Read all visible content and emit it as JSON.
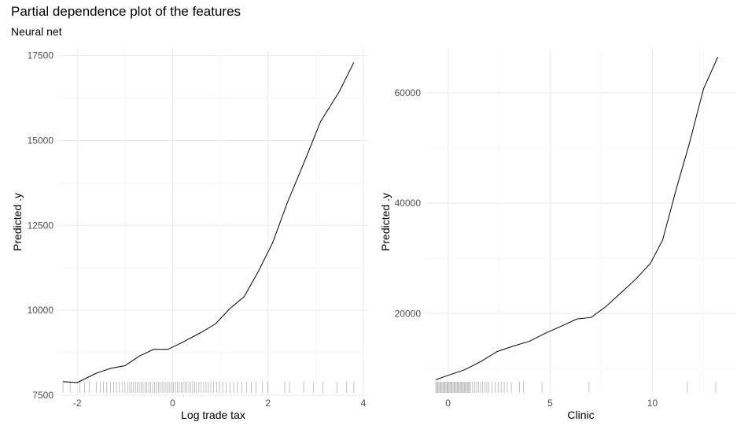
{
  "title": "Partial dependence plot of the features",
  "subtitle": "Neural net",
  "chart_data": [
    {
      "type": "line",
      "xlabel": "Log trade tax",
      "ylabel": "Predicted .y",
      "xlim": [
        -2.4,
        4.1
      ],
      "ylim": [
        7500,
        17700
      ],
      "xticks": [
        -2,
        0,
        2,
        4
      ],
      "yticks": [
        7500,
        10000,
        12500,
        15000,
        17500
      ],
      "xtick_labels": [
        "-2",
        "0",
        "2",
        "4"
      ],
      "ytick_labels": [
        "7500",
        "10000",
        "12500",
        "15000",
        "17500"
      ],
      "grid": true,
      "line_color": "#000000",
      "x": [
        -2.3,
        -2.0,
        -1.6,
        -1.3,
        -1.0,
        -0.7,
        -0.4,
        -0.1,
        0.2,
        0.6,
        0.9,
        1.2,
        1.5,
        1.8,
        2.1,
        2.4,
        2.8,
        3.1,
        3.5,
        3.8
      ],
      "y": [
        7900,
        7870,
        8150,
        8290,
        8370,
        8650,
        8850,
        8850,
        9050,
        9350,
        9600,
        10050,
        10400,
        11150,
        12000,
        13150,
        14500,
        15550,
        16450,
        17300
      ],
      "rug": [
        -2.3,
        -2.15,
        -1.95,
        -1.85,
        -1.75,
        -1.6,
        -1.52,
        -1.45,
        -1.38,
        -1.3,
        -1.24,
        -1.18,
        -1.12,
        -1.06,
        -1.0,
        -0.94,
        -0.9,
        -0.86,
        -0.82,
        -0.78,
        -0.74,
        -0.7,
        -0.66,
        -0.62,
        -0.58,
        -0.54,
        -0.5,
        -0.46,
        -0.42,
        -0.38,
        -0.34,
        -0.3,
        -0.26,
        -0.22,
        -0.18,
        -0.14,
        -0.1,
        -0.06,
        -0.02,
        0.02,
        0.06,
        0.1,
        0.14,
        0.18,
        0.22,
        0.26,
        0.3,
        0.34,
        0.38,
        0.42,
        0.46,
        0.5,
        0.55,
        0.6,
        0.65,
        0.7,
        0.75,
        0.8,
        0.86,
        0.92,
        0.98,
        1.05,
        1.12,
        1.2,
        1.28,
        1.36,
        1.45,
        1.55,
        1.65,
        1.75,
        1.88,
        2.0,
        2.35,
        2.45,
        2.75,
        2.95,
        3.15,
        3.45,
        3.65,
        3.8
      ]
    },
    {
      "type": "line",
      "xlabel": "Clinic",
      "ylabel": "Predicted .y",
      "xlim": [
        -1.1,
        14.1
      ],
      "ylim": [
        5200,
        68000
      ],
      "xticks": [
        0,
        5,
        10
      ],
      "yticks": [
        20000,
        40000,
        60000
      ],
      "xtick_labels": [
        "0",
        "5",
        "10"
      ],
      "ytick_labels": [
        "20000",
        "40000",
        "60000"
      ],
      "grid": true,
      "line_color": "#000000",
      "x": [
        -0.6,
        0.0,
        0.8,
        1.6,
        2.4,
        3.2,
        4.0,
        4.8,
        5.6,
        6.3,
        7.0,
        7.7,
        8.5,
        9.2,
        9.9,
        10.5,
        11.2,
        11.8,
        12.5,
        13.2
      ],
      "y": [
        8000,
        8800,
        9800,
        11300,
        13100,
        14100,
        15000,
        16500,
        17800,
        19000,
        19300,
        21200,
        23900,
        26300,
        29100,
        33300,
        43000,
        50700,
        60700,
        66500
      ],
      "rug": [
        -0.6,
        -0.55,
        -0.5,
        -0.45,
        -0.4,
        -0.35,
        -0.3,
        -0.25,
        -0.2,
        -0.15,
        -0.1,
        -0.05,
        0.0,
        0.05,
        0.1,
        0.15,
        0.2,
        0.25,
        0.3,
        0.35,
        0.4,
        0.45,
        0.5,
        0.55,
        0.6,
        0.65,
        0.7,
        0.75,
        0.8,
        0.85,
        0.9,
        0.95,
        1.0,
        1.05,
        1.1,
        1.2,
        1.3,
        1.4,
        1.5,
        1.6,
        1.7,
        1.8,
        1.9,
        2.0,
        2.15,
        2.3,
        2.45,
        2.6,
        2.75,
        2.9,
        3.1,
        3.5,
        3.7,
        4.6,
        6.9,
        11.7,
        13.1
      ]
    }
  ]
}
